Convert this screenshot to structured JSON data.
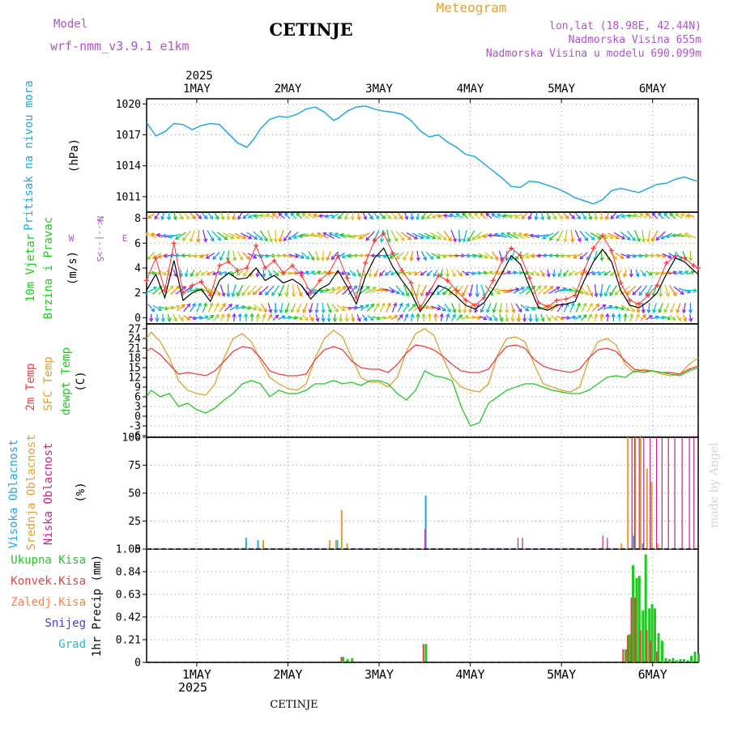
{
  "header": {
    "model_label": "Model",
    "model_value": "wrf-nmm_v3.9.1 e1km",
    "title": "CETINJE",
    "meteogram": "Meteogram",
    "coords": "lon,lat (18.98E, 42.44N)",
    "elevation": "Nadmorska Visina 655m",
    "model_elevation": "Nadmorska Visina u modelu 690.099m",
    "watermark": "made by Angel",
    "footer": "CETINJE"
  },
  "time_axis": {
    "year": "2025",
    "day_labels": [
      "1MAY",
      "2MAY",
      "3MAY",
      "4MAY",
      "5MAY",
      "6MAY"
    ],
    "day_positions": [
      1,
      2,
      3,
      4,
      5,
      6
    ],
    "range": [
      0.45,
      6.5
    ]
  },
  "colors": {
    "pressure": "#22a6e6",
    "temp2m": "#e84040",
    "sfc": "#e0a030",
    "dewpt": "#22c822",
    "wind_line": "#000000",
    "gust": "#ff3030",
    "cloud_high": "#22a6e6",
    "cloud_mid": "#e0a030",
    "cloud_low": "#c8228c",
    "rain": "#22c822",
    "konv": "#e84040",
    "frozen": "#ff8040",
    "snow": "#4040e0",
    "grad": "#20c0c0",
    "purple": "#b050d0"
  },
  "chart_data": [
    {
      "type": "line",
      "name": "pressure",
      "ylabel": [
        "Pritisak na nivou mora",
        "(hPa)"
      ],
      "ylim": [
        1009.5,
        1020.5
      ],
      "yticks": [
        "1011",
        "1014",
        "1017",
        "1020"
      ],
      "x": [
        0.45,
        0.55,
        0.65,
        0.75,
        0.85,
        0.95,
        1.05,
        1.15,
        1.25,
        1.35,
        1.45,
        1.55,
        1.62,
        1.7,
        1.8,
        1.9,
        2.0,
        2.1,
        2.2,
        2.3,
        2.4,
        2.5,
        2.55,
        2.65,
        2.75,
        2.85,
        2.95,
        3.05,
        3.15,
        3.25,
        3.35,
        3.45,
        3.55,
        3.65,
        3.75,
        3.85,
        3.95,
        4.05,
        4.15,
        4.25,
        4.35,
        4.45,
        4.55,
        4.65,
        4.75,
        4.85,
        4.95,
        5.05,
        5.15,
        5.25,
        5.35,
        5.45,
        5.55,
        5.65,
        5.75,
        5.85,
        5.95,
        6.05,
        6.15,
        6.25,
        6.35,
        6.45,
        6.5
      ],
      "values": [
        1018.2,
        1016.9,
        1017.3,
        1018.1,
        1018.0,
        1017.5,
        1017.9,
        1018.1,
        1018.0,
        1017.1,
        1016.2,
        1015.8,
        1016.5,
        1017.6,
        1018.5,
        1018.8,
        1018.7,
        1019.0,
        1019.5,
        1019.7,
        1019.2,
        1018.4,
        1018.6,
        1019.3,
        1019.7,
        1019.8,
        1019.5,
        1019.3,
        1019.2,
        1019.0,
        1018.4,
        1017.4,
        1016.8,
        1017.0,
        1016.3,
        1015.8,
        1015.1,
        1014.9,
        1014.2,
        1013.5,
        1012.8,
        1012.0,
        1011.9,
        1012.5,
        1012.4,
        1012.1,
        1011.8,
        1011.4,
        1010.9,
        1010.6,
        1010.3,
        1010.7,
        1011.6,
        1011.8,
        1011.6,
        1011.4,
        1011.8,
        1012.2,
        1012.3,
        1012.7,
        1012.9,
        1012.6,
        1012.5
      ]
    },
    {
      "type": "line",
      "name": "wind",
      "ylabel": [
        "10m Vjetar",
        "Brzina i Pravac",
        "(m/s)"
      ],
      "compass": [
        "N",
        "W",
        "<--|-->",
        "E",
        "S"
      ],
      "ylim": [
        -0.5,
        8.5
      ],
      "yticks": [
        "0",
        "2",
        "4",
        "6",
        "8"
      ],
      "x": [
        0.45,
        0.55,
        0.65,
        0.75,
        0.85,
        0.95,
        1.05,
        1.15,
        1.25,
        1.35,
        1.45,
        1.55,
        1.65,
        1.75,
        1.85,
        1.95,
        2.05,
        2.15,
        2.25,
        2.35,
        2.45,
        2.55,
        2.65,
        2.75,
        2.85,
        2.95,
        3.05,
        3.15,
        3.25,
        3.35,
        3.45,
        3.55,
        3.65,
        3.75,
        3.85,
        3.95,
        4.05,
        4.15,
        4.25,
        4.35,
        4.45,
        4.55,
        4.65,
        4.75,
        4.85,
        4.95,
        5.05,
        5.15,
        5.25,
        5.35,
        5.45,
        5.55,
        5.65,
        5.75,
        5.85,
        5.95,
        6.05,
        6.15,
        6.25,
        6.35,
        6.45,
        6.5
      ],
      "values": [
        2.2,
        3.5,
        1.6,
        4.6,
        1.4,
        2.0,
        2.3,
        1.3,
        3.0,
        3.6,
        3.1,
        3.2,
        4.0,
        3.0,
        3.4,
        2.8,
        3.1,
        2.6,
        1.5,
        2.3,
        2.7,
        3.8,
        2.5,
        1.1,
        3.3,
        4.8,
        5.6,
        4.1,
        3.0,
        2.0,
        0.5,
        1.5,
        2.6,
        2.3,
        1.7,
        1.0,
        0.7,
        1.2,
        2.3,
        3.6,
        5.0,
        4.3,
        2.5,
        0.8,
        0.6,
        1.0,
        1.1,
        1.3,
        3.0,
        4.5,
        5.5,
        4.5,
        2.2,
        1.0,
        0.8,
        1.3,
        2.0,
        3.5,
        4.8,
        4.5,
        3.8,
        3.5
      ],
      "gust": [
        3.0,
        4.8,
        2.2,
        6.0,
        2.0,
        2.6,
        2.9,
        1.8,
        4.2,
        4.5,
        3.8,
        4.0,
        5.8,
        4.0,
        4.6,
        3.6,
        4.2,
        3.4,
        2.0,
        3.0,
        3.6,
        5.0,
        3.2,
        1.6,
        4.4,
        6.2,
        6.8,
        5.2,
        3.8,
        2.8,
        0.8,
        2.0,
        3.4,
        3.0,
        2.2,
        1.4,
        1.0,
        1.6,
        3.0,
        4.6,
        5.6,
        5.0,
        3.2,
        1.2,
        0.9,
        1.4,
        1.5,
        1.8,
        3.8,
        5.6,
        6.6,
        5.4,
        2.8,
        1.4,
        1.1,
        1.8,
        2.6,
        4.4,
        5.0,
        4.8,
        4.2,
        4.0
      ]
    },
    {
      "type": "line",
      "name": "temperature",
      "ylabel": [
        "2m Temp",
        "SFC Temp",
        "dewpt Temp",
        "(C)"
      ],
      "ylim": [
        -6.5,
        28.5
      ],
      "yticks": [
        "-6",
        "-3",
        "0",
        "3",
        "6",
        "9",
        "12",
        "15",
        "18",
        "21",
        "24",
        "27"
      ],
      "x": [
        0.45,
        0.5,
        0.6,
        0.7,
        0.8,
        0.9,
        1.0,
        1.1,
        1.2,
        1.3,
        1.4,
        1.5,
        1.6,
        1.7,
        1.8,
        1.9,
        2.0,
        2.1,
        2.2,
        2.3,
        2.4,
        2.5,
        2.6,
        2.7,
        2.8,
        2.9,
        3.0,
        3.1,
        3.2,
        3.3,
        3.4,
        3.5,
        3.6,
        3.7,
        3.8,
        3.9,
        4.0,
        4.1,
        4.2,
        4.3,
        4.4,
        4.5,
        4.6,
        4.7,
        4.8,
        4.9,
        5.0,
        5.1,
        5.2,
        5.3,
        5.4,
        5.5,
        5.6,
        5.7,
        5.8,
        5.9,
        6.0,
        6.1,
        6.2,
        6.3,
        6.4,
        6.5
      ],
      "t2m": [
        20.0,
        21.0,
        19.0,
        16.0,
        13.0,
        13.5,
        13.0,
        12.5,
        14.0,
        17.0,
        20.0,
        21.5,
        21.0,
        18.0,
        14.0,
        13.0,
        12.5,
        12.5,
        13.0,
        17.5,
        20.5,
        21.5,
        20.5,
        17.0,
        15.0,
        14.5,
        14.5,
        13.5,
        16.0,
        19.5,
        22.0,
        21.5,
        20.5,
        18.5,
        16.0,
        14.0,
        13.5,
        13.5,
        14.5,
        18.5,
        21.5,
        22.0,
        21.0,
        17.5,
        15.5,
        14.5,
        14.0,
        13.5,
        14.5,
        18.0,
        20.5,
        21.0,
        20.0,
        17.0,
        14.5,
        14.0,
        14.0,
        13.5,
        13.5,
        13.0,
        14.5,
        15.5
      ],
      "sfc": [
        24.0,
        26.0,
        23.0,
        18.0,
        11.0,
        8.0,
        7.0,
        6.5,
        10.0,
        18.0,
        24.0,
        25.5,
        23.0,
        17.0,
        12.0,
        10.0,
        8.5,
        8.0,
        10.0,
        18.0,
        24.0,
        26.5,
        24.5,
        18.0,
        12.0,
        10.5,
        10.5,
        9.0,
        12.0,
        20.0,
        25.5,
        27.0,
        25.0,
        18.0,
        12.0,
        9.0,
        8.0,
        7.5,
        10.0,
        19.0,
        24.0,
        24.5,
        23.0,
        16.0,
        10.0,
        9.0,
        8.0,
        7.5,
        9.0,
        17.5,
        23.0,
        24.0,
        22.0,
        16.0,
        13.5,
        14.5,
        14.0,
        13.0,
        12.5,
        13.0,
        16.0,
        18.0
      ],
      "dewpt": [
        6.0,
        8.0,
        6.0,
        7.0,
        3.0,
        4.0,
        2.0,
        1.0,
        2.5,
        5.0,
        7.0,
        10.0,
        11.0,
        10.0,
        6.0,
        8.0,
        7.0,
        7.0,
        8.0,
        10.0,
        10.0,
        11.0,
        10.0,
        10.5,
        9.5,
        11.0,
        11.0,
        10.0,
        7.0,
        5.0,
        8.0,
        14.0,
        12.5,
        12.0,
        11.0,
        3.0,
        -3.0,
        -2.0,
        4.0,
        6.0,
        8.0,
        9.0,
        10.0,
        10.0,
        9.0,
        8.0,
        7.5,
        7.0,
        7.0,
        8.0,
        10.0,
        12.0,
        12.5,
        12.0,
        14.0,
        13.5,
        14.0,
        13.5,
        13.0,
        12.5,
        14.0,
        15.0
      ]
    },
    {
      "type": "bar",
      "name": "clouds",
      "ylabel": [
        "Visoka Oblacnost",
        "Srednja Oblacnost",
        "Niska Oblacnost",
        "(%)"
      ],
      "ylim": [
        0,
        100
      ],
      "yticks": [
        "0",
        "25",
        "50",
        "75",
        "100"
      ],
      "high": [
        [
          1.55,
          10
        ],
        [
          1.68,
          8
        ],
        [
          2.55,
          8
        ],
        [
          3.52,
          48
        ],
        [
          5.8,
          12
        ],
        [
          5.9,
          5
        ],
        [
          6.0,
          5
        ]
      ],
      "mid": [
        [
          1.72,
          8
        ],
        [
          2.45,
          8
        ],
        [
          2.52,
          8
        ],
        [
          2.58,
          35
        ],
        [
          2.64,
          5
        ],
        [
          5.65,
          5
        ],
        [
          5.72,
          100
        ],
        [
          5.8,
          100
        ],
        [
          5.86,
          100
        ],
        [
          5.93,
          72
        ],
        [
          5.98,
          60
        ],
        [
          6.05,
          5
        ]
      ],
      "low": [
        [
          3.48,
          18
        ],
        [
          4.5,
          10
        ],
        [
          4.55,
          10
        ],
        [
          5.43,
          12
        ],
        [
          5.48,
          10
        ],
        [
          5.75,
          100
        ],
        [
          5.78,
          100
        ],
        [
          5.83,
          100
        ],
        [
          5.88,
          100
        ],
        [
          5.95,
          100
        ],
        [
          6.02,
          100
        ],
        [
          6.08,
          100
        ],
        [
          6.15,
          100
        ],
        [
          6.22,
          100
        ],
        [
          6.3,
          100
        ],
        [
          6.38,
          100
        ],
        [
          6.43,
          100
        ]
      ]
    },
    {
      "type": "bar",
      "name": "precip",
      "ylabel": [
        "Ukupna Kisa",
        "Konvek.Kisa",
        "Zaledj.Kisa",
        "Snijeg",
        "Grad",
        "1hr Precip (mm)"
      ],
      "ylim": [
        0,
        1.05
      ],
      "yticks": [
        "0",
        "0.21",
        "0.42",
        "0.63",
        "0.84",
        "1.05"
      ],
      "rain": [
        [
          2.6,
          0.05
        ],
        [
          2.65,
          0.03
        ],
        [
          2.7,
          0.04
        ],
        [
          3.51,
          0.17
        ],
        [
          5.7,
          0.12
        ],
        [
          5.74,
          0.26
        ],
        [
          5.78,
          0.9
        ],
        [
          5.82,
          0.78
        ],
        [
          5.85,
          0.8
        ],
        [
          5.89,
          0.48
        ],
        [
          5.92,
          1.0
        ],
        [
          5.96,
          0.5
        ],
        [
          5.99,
          0.54
        ],
        [
          6.02,
          0.5
        ],
        [
          6.06,
          0.27
        ],
        [
          6.1,
          0.2
        ],
        [
          6.14,
          0.04
        ],
        [
          6.18,
          0.03
        ],
        [
          6.22,
          0.04
        ],
        [
          6.26,
          0.02
        ],
        [
          6.3,
          0.03
        ],
        [
          6.34,
          0.03
        ],
        [
          6.38,
          0.02
        ],
        [
          6.42,
          0.06
        ],
        [
          6.46,
          0.1
        ],
        [
          6.5,
          0.08
        ]
      ],
      "konv": [
        [
          2.6,
          0.05
        ],
        [
          3.5,
          0.17
        ],
        [
          5.69,
          0.12
        ],
        [
          5.74,
          0.25
        ],
        [
          5.78,
          0.6
        ],
        [
          5.82,
          0.6
        ],
        [
          5.88,
          0.3
        ],
        [
          5.95,
          0.3
        ],
        [
          5.99,
          0.2
        ],
        [
          6.06,
          0.1
        ]
      ]
    }
  ]
}
